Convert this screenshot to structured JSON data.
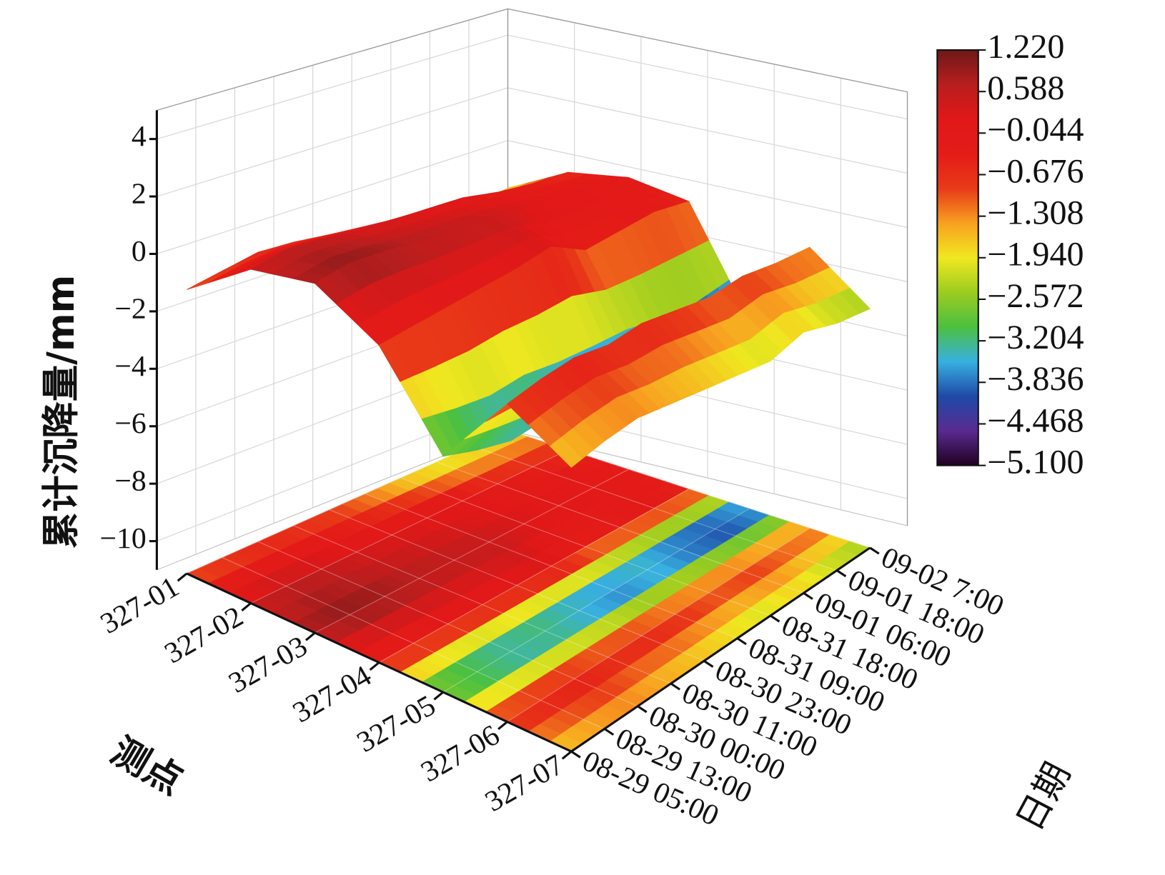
{
  "chart_data": {
    "type": "surface3d",
    "z_label": "累计沉降量/mm",
    "x_label": "测点",
    "y_label": "日期",
    "x_categories": [
      "327-01",
      "327-02",
      "327-03",
      "327-04",
      "327-05",
      "327-06",
      "327-07"
    ],
    "y_categories": [
      "08-29 05:00",
      "08-29 13:00",
      "08-30 00:00",
      "08-30 11:00",
      "08-30 23:00",
      "08-31 09:00",
      "08-31 18:00",
      "09-01 06:00",
      "09-01 18:00",
      "09-02 7:00"
    ],
    "values": [
      [
        -1.2,
        -1.0,
        -0.8,
        -0.9,
        -1.1,
        -1.5,
        -2.0,
        -2.2,
        -2.0,
        -1.8
      ],
      [
        0.4,
        0.6,
        0.5,
        0.3,
        0.2,
        0.1,
        0.0,
        -0.3,
        -0.5,
        -0.6
      ],
      [
        0.8,
        1.0,
        0.9,
        0.7,
        0.6,
        0.5,
        0.3,
        0.1,
        0.0,
        -0.2
      ],
      [
        -0.4,
        -0.3,
        -0.2,
        -0.1,
        0.0,
        0.2,
        -0.5,
        -0.4,
        -0.3,
        -0.5
      ],
      [
        -3.2,
        -3.6,
        -3.9,
        -3.8,
        -4.1,
        -4.3,
        -4.0,
        -4.4,
        -4.6,
        -4.2
      ],
      [
        -0.6,
        -0.4,
        -0.3,
        -0.5,
        -0.4,
        -0.6,
        -0.8,
        -0.7,
        -0.9,
        -1.0
      ],
      [
        -1.8,
        -1.6,
        -1.5,
        -1.7,
        -1.9,
        -2.1,
        -2.3,
        -2.0,
        -2.4,
        -2.6
      ]
    ],
    "zlim": [
      -11,
      5
    ],
    "zticks": [
      {
        "value": -10,
        "label": "−10"
      },
      {
        "value": -8,
        "label": "−8"
      },
      {
        "value": -6,
        "label": "−6"
      },
      {
        "value": -4,
        "label": "−4"
      },
      {
        "value": -2,
        "label": "−2"
      },
      0,
      2,
      4
    ],
    "clim": [
      -5.1,
      1.22
    ],
    "cticks": [
      {
        "value": 1.22,
        "label": "1.220"
      },
      {
        "value": 0.588,
        "label": "0.588"
      },
      {
        "value": -0.044,
        "label": "−0.044"
      },
      {
        "value": -0.676,
        "label": "−0.676"
      },
      {
        "value": -1.308,
        "label": "−1.308"
      },
      {
        "value": -1.94,
        "label": "−1.940"
      },
      {
        "value": -2.572,
        "label": "−2.572"
      },
      {
        "value": -3.204,
        "label": "−3.204"
      },
      {
        "value": -3.836,
        "label": "−3.836"
      },
      {
        "value": -4.468,
        "label": "−4.468"
      },
      {
        "value": -5.1,
        "label": "−5.100"
      }
    ],
    "colormap": [
      "#200020",
      "#5a2a90",
      "#1e4aa8",
      "#38b0e0",
      "#4cc040",
      "#9ccc20",
      "#f0e820",
      "#f8a020",
      "#e83a18",
      "#e41c18",
      "#e01818",
      "#b81e1e",
      "#6e1818"
    ],
    "floor_projection": true,
    "grid": true
  }
}
